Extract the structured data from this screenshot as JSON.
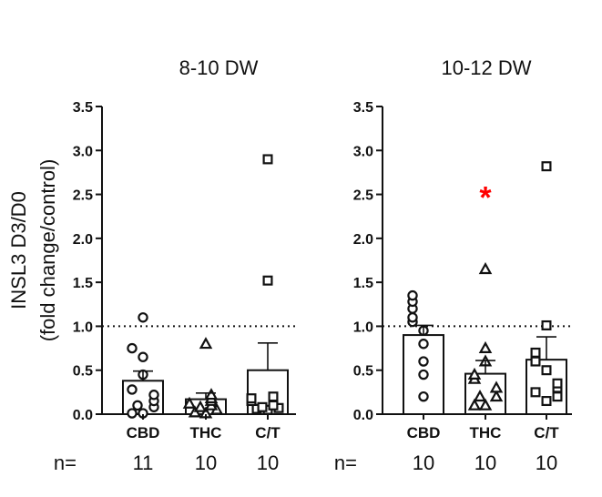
{
  "chart_data": {
    "type": "bar",
    "ylabel": {
      "line1": "INSL3 D3/D0",
      "line2": "(fold change/control)"
    },
    "ylim": [
      0,
      3.5
    ],
    "yticks": [
      "0.0",
      "0.5",
      "1.0",
      "1.5",
      "2.0",
      "2.5",
      "3.0",
      "3.5"
    ],
    "reference_line": 1.0,
    "n_label": "n=",
    "categories": [
      "CBD",
      "THC",
      "C/T"
    ],
    "marker_shapes": [
      "circle",
      "triangle",
      "square"
    ],
    "panels": [
      {
        "title": "8-10 DW",
        "means": [
          0.38,
          0.17,
          0.5
        ],
        "sem": [
          0.11,
          0.07,
          0.31
        ],
        "n": [
          "11",
          "10",
          "10"
        ],
        "significance": [
          "",
          "",
          ""
        ],
        "points": [
          [
            0.01,
            0.01,
            0.08,
            0.1,
            0.15,
            0.22,
            0.28,
            0.45,
            0.65,
            0.75,
            1.1
          ],
          [
            0.01,
            0.02,
            0.05,
            0.08,
            0.1,
            0.12,
            0.15,
            0.18,
            0.22,
            0.8
          ],
          [
            0.05,
            0.06,
            0.07,
            0.08,
            0.1,
            0.15,
            0.18,
            0.2,
            1.52,
            2.9
          ]
        ]
      },
      {
        "title": "10-12 DW",
        "means": [
          0.9,
          0.46,
          0.62
        ],
        "sem": [
          0.11,
          0.15,
          0.26
        ],
        "n": [
          "10",
          "10",
          "10"
        ],
        "significance": [
          "",
          "*",
          ""
        ],
        "points": [
          [
            0.2,
            0.45,
            0.6,
            0.8,
            0.95,
            1.05,
            1.1,
            1.2,
            1.28,
            1.35
          ],
          [
            0.1,
            0.1,
            0.2,
            0.2,
            0.3,
            0.4,
            0.45,
            0.6,
            0.75,
            1.65
          ],
          [
            0.15,
            0.25,
            0.2,
            0.3,
            0.35,
            0.5,
            0.6,
            0.7,
            1.01,
            2.82
          ]
        ]
      }
    ]
  },
  "colors": {
    "ink": "#111111",
    "significance": "#ff0000"
  }
}
